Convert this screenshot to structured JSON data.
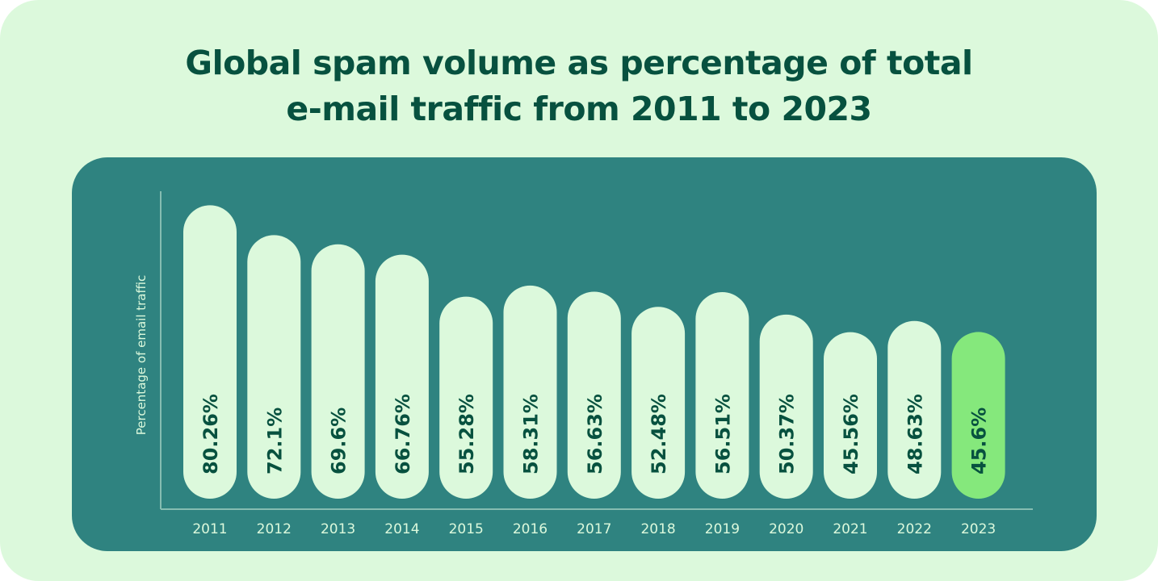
{
  "colors": {
    "background": "#dcf9dc",
    "title": "#07513f",
    "panel": "#2f8380",
    "bar": "#dcf9dc",
    "highlight_bar": "#85e87c",
    "bar_label": "#07513f",
    "axis_text": "#dcf9dc"
  },
  "chart_data": {
    "type": "bar",
    "title_lines": [
      "Global spam volume as percentage of total",
      "e-mail traffic from 2011 to 2023"
    ],
    "ylabel": "Percentage of email traffic",
    "xlabel": "",
    "grid": false,
    "categories": [
      "2011",
      "2012",
      "2013",
      "2014",
      "2015",
      "2016",
      "2017",
      "2018",
      "2019",
      "2020",
      "2021",
      "2022",
      "2023"
    ],
    "values": [
      80.26,
      72.1,
      69.6,
      66.76,
      55.28,
      58.31,
      56.63,
      52.48,
      56.51,
      50.37,
      45.56,
      48.63,
      45.6
    ],
    "value_labels": [
      "80.26%",
      "72.1%",
      "69.6%",
      "66.76%",
      "55.28%",
      "58.31%",
      "56.63%",
      "52.48%",
      "56.51%",
      "50.37%",
      "45.56%",
      "48.63%",
      "45.6%"
    ],
    "highlight_category": "2023"
  }
}
